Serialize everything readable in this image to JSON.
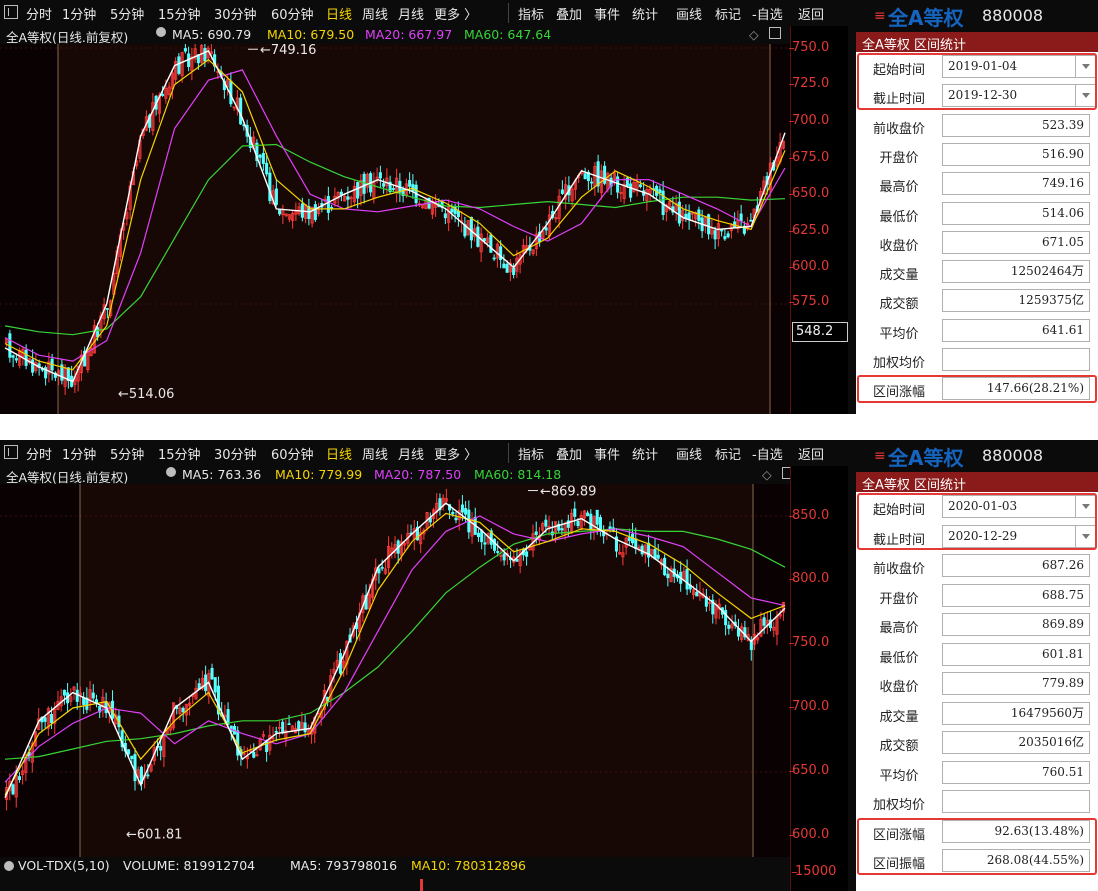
{
  "panels": [
    {
      "toolbar": {
        "periods": [
          "分时",
          "1分钟",
          "5分钟",
          "15分钟",
          "30分钟",
          "60分钟",
          "日线",
          "周线",
          "月线",
          "更多 〉"
        ],
        "active_period": "日线",
        "tools": [
          "指标",
          "叠加",
          "事件",
          "统计",
          "画线",
          "标记",
          "-自选",
          "返回"
        ]
      },
      "chart_header": {
        "title": "全A等权(日线.前复权)",
        "ma5": "MA5: 690.79",
        "ma10": "MA10: 679.50",
        "ma20": "MA20: 667.97",
        "ma60": "MA60: 647.64"
      },
      "y_axis": {
        "ticks": [
          "750.0",
          "725.0",
          "700.0",
          "675.0",
          "650.0",
          "625.0",
          "600.0",
          "575.0"
        ],
        "current_price": "548.2"
      },
      "annotations": {
        "high": "749.16",
        "low": "514.06"
      },
      "chart_data": {
        "type": "line",
        "title": "",
        "ylim": [
          514,
          760
        ],
        "series": [
          {
            "name": "MA60",
            "color": "#37d437",
            "values": [
              560,
              556,
              554,
              558,
              580,
              620,
              660,
              683,
              684,
              672,
              662,
              655,
              648,
              642,
              641,
              643,
              645,
              643,
              641,
              645,
              648,
              648,
              646,
              647
            ]
          },
          {
            "name": "MA20",
            "color": "#e040fb",
            "values": [
              552,
              540,
              536,
              550,
              610,
              695,
              728,
              735,
              690,
              650,
              640,
              638,
              642,
              646,
              640,
              628,
              618,
              630,
              660,
              660,
              650,
              640,
              628,
              668
            ]
          },
          {
            "name": "MA10",
            "color": "#f5d500",
            "values": [
              548,
              536,
              530,
              560,
              660,
              725,
              742,
              720,
              660,
              640,
              640,
              648,
              654,
              644,
              630,
              608,
              620,
              648,
              666,
              655,
              640,
              632,
              626,
              680
            ]
          },
          {
            "name": "MA5",
            "color": "#ffffff",
            "values": [
              545,
              532,
              522,
              575,
              690,
              738,
              748,
              702,
              640,
              638,
              650,
              660,
              652,
              640,
              620,
              600,
              630,
              666,
              658,
              650,
              634,
              626,
              628,
              692
            ]
          }
        ],
        "candles": {
          "count": 240,
          "high": 749.16,
          "low": 514.06
        }
      },
      "stats": {
        "panel_name": "全A等权",
        "menu_icon": "≡",
        "code": "880008",
        "section_title": "全A等权 区间统计",
        "rows": [
          {
            "label": "起始时间",
            "value": "2019-01-04",
            "dropdown": true
          },
          {
            "label": "截止时间",
            "value": "2019-12-30",
            "dropdown": true
          },
          {
            "label": "前收盘价",
            "value": "523.39"
          },
          {
            "label": "开盘价",
            "value": "516.90"
          },
          {
            "label": "最高价",
            "value": "749.16"
          },
          {
            "label": "最低价",
            "value": "514.06"
          },
          {
            "label": "收盘价",
            "value": "671.05"
          },
          {
            "label": "成交量",
            "value": "12502464万"
          },
          {
            "label": "成交额",
            "value": "1259375亿"
          },
          {
            "label": "平均价",
            "value": "641.61"
          },
          {
            "label": "加权均价",
            "value": ""
          },
          {
            "label": "区间涨幅",
            "value": "147.66(28.21%)"
          }
        ]
      }
    },
    {
      "toolbar": {
        "periods": [
          "分时",
          "1分钟",
          "5分钟",
          "15分钟",
          "30分钟",
          "60分钟",
          "日线",
          "周线",
          "月线",
          "更多 〉"
        ],
        "active_period": "日线",
        "tools": [
          "指标",
          "叠加",
          "事件",
          "统计",
          "画线",
          "标记",
          "-自选",
          "返回"
        ]
      },
      "chart_header": {
        "title": "全A等权(日线.前复权)",
        "ma5": "MA5: 763.36",
        "ma10": "MA10: 779.99",
        "ma20": "MA20: 787.50",
        "ma60": "MA60: 814.18"
      },
      "y_axis": {
        "ticks": [
          "850.0",
          "800.0",
          "750.0",
          "700.0",
          "650.0",
          "600.0"
        ],
        "vol_tick": "15000"
      },
      "annotations": {
        "high": "869.89",
        "low": "601.81"
      },
      "volume_header": {
        "indicator": "VOL-TDX(5,10)",
        "volume": "VOLUME: 819912704",
        "ma5": "MA5: 793798016",
        "ma10": "MA10: 780312896"
      },
      "chart_data": {
        "type": "line",
        "title": "",
        "ylim": [
          596,
          880
        ],
        "series": [
          {
            "name": "MA60",
            "color": "#37d437",
            "values": [
              660,
              662,
              668,
              674,
              676,
              680,
              686,
              690,
              690,
              696,
              712,
              732,
              760,
              790,
              810,
              828,
              836,
              838,
              840,
              838,
              838,
              832,
              824,
              810
            ]
          },
          {
            "name": "MA20",
            "color": "#e040fb",
            "values": [
              642,
              670,
              688,
              700,
              696,
              672,
              690,
              680,
              672,
              680,
              712,
              760,
              808,
              838,
              850,
              836,
              830,
              836,
              840,
              834,
              826,
              806,
              786,
              780
            ]
          },
          {
            "name": "MA10",
            "color": "#f5d500",
            "values": [
              632,
              680,
              700,
              705,
              660,
              690,
              712,
              665,
              675,
              680,
              730,
              792,
              830,
              852,
              845,
              822,
              830,
              840,
              838,
              828,
              812,
              790,
              770,
              780
            ]
          },
          {
            "name": "MA5",
            "color": "#ffffff",
            "values": [
              630,
              690,
              712,
              700,
              640,
              700,
              720,
              660,
              680,
              684,
              742,
              810,
              836,
              860,
              840,
              815,
              840,
              848,
              832,
              820,
              800,
              780,
              752,
              778
            ]
          }
        ],
        "candles": {
          "count": 243,
          "high": 869.89,
          "low": 601.81
        }
      },
      "stats": {
        "panel_name": "全A等权",
        "menu_icon": "≡",
        "code": "880008",
        "section_title": "全A等权 区间统计",
        "rows": [
          {
            "label": "起始时间",
            "value": "2020-01-03",
            "dropdown": true
          },
          {
            "label": "截止时间",
            "value": "2020-12-29",
            "dropdown": true
          },
          {
            "label": "前收盘价",
            "value": "687.26"
          },
          {
            "label": "开盘价",
            "value": "688.75"
          },
          {
            "label": "最高价",
            "value": "869.89"
          },
          {
            "label": "最低价",
            "value": "601.81"
          },
          {
            "label": "收盘价",
            "value": "779.89"
          },
          {
            "label": "成交量",
            "value": "16479560万"
          },
          {
            "label": "成交额",
            "value": "2035016亿"
          },
          {
            "label": "平均价",
            "value": "760.51"
          },
          {
            "label": "加权均价",
            "value": ""
          },
          {
            "label": "区间涨幅",
            "value": "92.63(13.48%)"
          },
          {
            "label": "区间振幅",
            "value": "268.08(44.55%)"
          }
        ]
      }
    }
  ]
}
